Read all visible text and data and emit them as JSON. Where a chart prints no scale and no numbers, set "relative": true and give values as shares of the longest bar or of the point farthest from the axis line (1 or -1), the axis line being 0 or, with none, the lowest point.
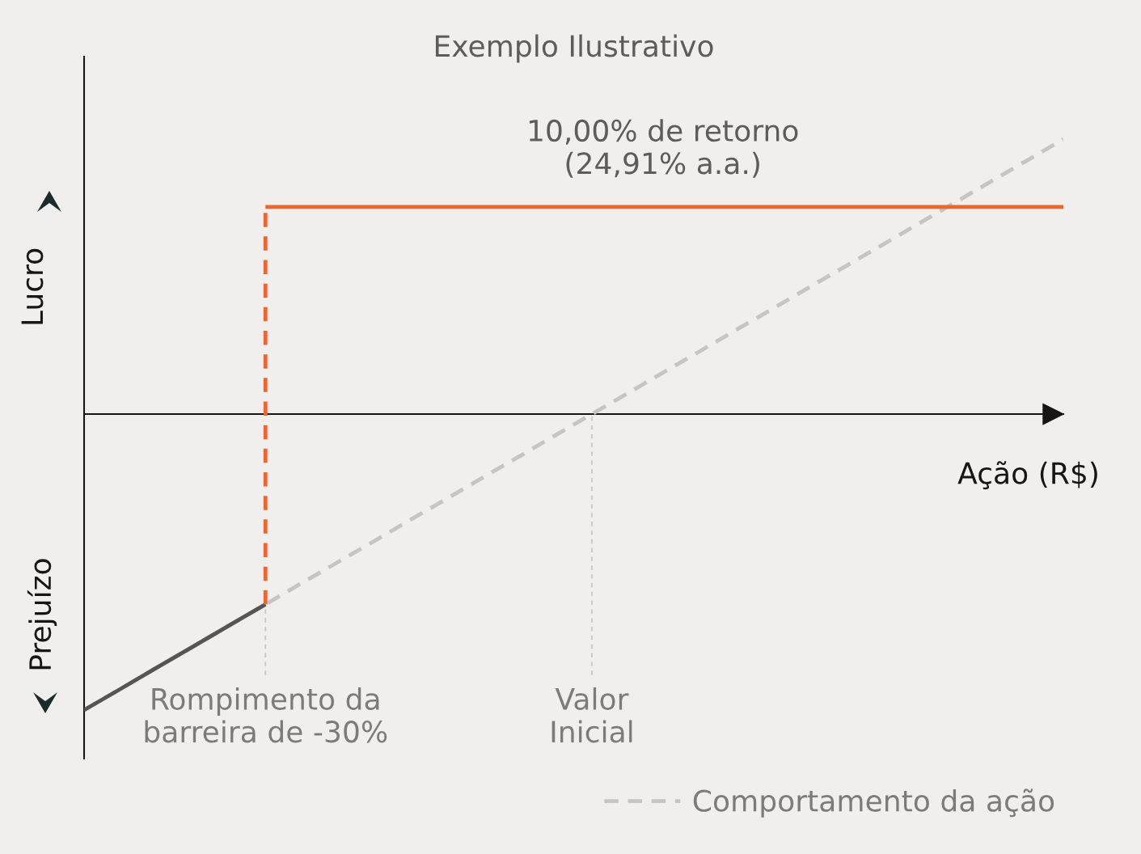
{
  "chart_data": {
    "type": "line",
    "title": "Exemplo Ilustrativo",
    "xlabel": "Ação (R$)",
    "relative": true,
    "categories": [
      null,
      null,
      null,
      null,
      null,
      "Rompimento da\nbarreira de -30%",
      null,
      null,
      null,
      null,
      null,
      null,
      null,
      null,
      "Valor\nInicial",
      null,
      null,
      null,
      null,
      null,
      null,
      null,
      null,
      null,
      null,
      null,
      null,
      null
    ],
    "tick_labels": "x",
    "legend": "bottom right",
    "series": [
      {
        "name": "Comportamento da ação",
        "color": "#c6c5c3",
        "line_style": "dashed",
        "values": [
          -1,
          -0.929,
          -0.857,
          -0.786,
          -0.714,
          -0.643,
          -0.571,
          -0.5,
          -0.429,
          -0.357,
          -0.286,
          -0.214,
          -0.143,
          -0.071,
          0,
          0.071,
          0.143,
          0.214,
          0.286,
          0.357,
          0.429,
          0.5,
          0.571,
          0.643,
          0.714,
          0.786,
          0.857,
          0.929
        ]
      },
      {
        "color": "#555555",
        "line_style": "solid",
        "values": [
          -1,
          -0.929,
          -0.857,
          -0.786,
          -0.714,
          -0.643,
          null,
          null,
          null,
          null,
          null,
          null,
          null,
          null,
          null,
          null,
          null,
          null,
          null,
          null,
          null,
          null,
          null,
          null,
          null,
          null,
          null,
          null
        ]
      },
      {
        "color": "#e8692f",
        "line_style": "dashed",
        "x": [
          "Rompimento da\nbarreira de -30%",
          "Rompimento da\nbarreira de -30%"
        ],
        "values": [
          -0.643,
          0.7
        ]
      },
      {
        "color": "#e8692f",
        "line_style": "solid",
        "values": [
          null,
          null,
          null,
          null,
          null,
          0.7,
          0.7,
          0.7,
          0.7,
          0.7,
          0.7,
          0.7,
          0.7,
          0.7,
          0.7,
          0.7,
          0.7,
          0.7,
          0.7,
          0.7,
          0.7,
          0.7,
          0.7,
          0.7,
          0.7,
          0.7,
          0.7,
          0.7
        ]
      }
    ],
    "ref_lines": [
      {
        "axis": "x",
        "value": "Rompimento da\nbarreira de -30%",
        "color": "#c8c8c8",
        "line_style": "dashed"
      },
      {
        "axis": "x",
        "value": "Valor\nInicial",
        "color": "#c8c8c8",
        "line_style": "dashed"
      }
    ],
    "annotations": [
      {
        "text": "10,00% de retorno\n(24,91% a.a.)",
        "y": 0.7
      },
      "Lucro",
      "Prejuízo"
    ]
  }
}
